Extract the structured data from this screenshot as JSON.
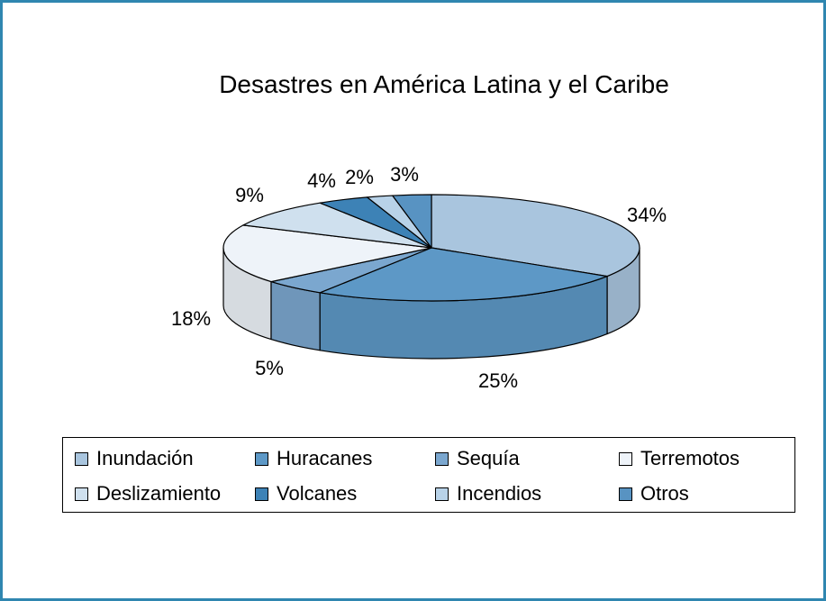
{
  "chart_data": {
    "type": "pie",
    "title": "Desastres en América Latina y el Caribe",
    "slices": [
      {
        "label": "Inundación",
        "value": 34,
        "data_label": "34%",
        "color": "#a9c5de"
      },
      {
        "label": "Huracanes",
        "value": 25,
        "data_label": "25%",
        "color": "#5d98c6"
      },
      {
        "label": "Sequía",
        "value": 5,
        "data_label": "5%",
        "color": "#7ba7cf"
      },
      {
        "label": "Terremotos",
        "value": 18,
        "data_label": "18%",
        "color": "#eef3f9"
      },
      {
        "label": "Deslizamiento",
        "value": 9,
        "data_label": "9%",
        "color": "#cfe0ee"
      },
      {
        "label": "Volcanes",
        "value": 4,
        "data_label": "4%",
        "color": "#3d82b6"
      },
      {
        "label": "Incendios",
        "value": 2,
        "data_label": "2%",
        "color": "#b8d2e8"
      },
      {
        "label": "Otros",
        "value": 3,
        "data_label": "3%",
        "color": "#5893c2"
      }
    ],
    "legend_position": "bottom",
    "style": "3d-pie"
  },
  "colors": {
    "frame_border": "#2f86b0"
  }
}
